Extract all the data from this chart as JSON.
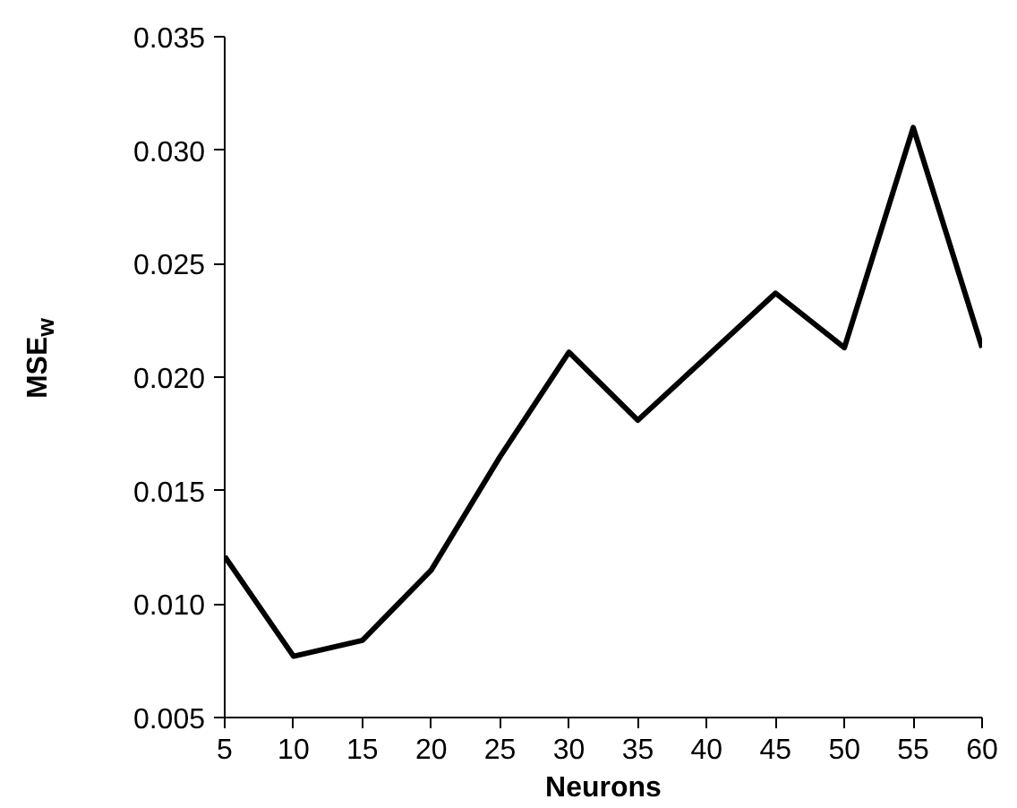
{
  "chart_data": {
    "type": "line",
    "xlabel": "Neurons",
    "ylabel": "MSE$_{w}$",
    "x": [
      5,
      10,
      15,
      20,
      25,
      30,
      35,
      40,
      45,
      50,
      55,
      60
    ],
    "series": [
      {
        "color": "#000000",
        "values": [
          0.0121,
          0.0077,
          0.0084,
          0.0115,
          0.0165,
          0.0211,
          0.0181,
          0.0209,
          0.0237,
          0.0213,
          0.031,
          0.0213
        ]
      }
    ],
    "xlim": [
      5,
      60
    ],
    "xticks": [
      5,
      10,
      15,
      20,
      25,
      30,
      35,
      40,
      45,
      50,
      55,
      60
    ],
    "ylim": [
      0.005,
      0.035
    ],
    "yticks": [
      {
        "value": 0.005,
        "label": "0.005"
      },
      {
        "value": 0.01,
        "label": "0.010"
      },
      {
        "value": 0.015,
        "label": "0.015"
      },
      {
        "value": 0.02,
        "label": "0.020"
      },
      {
        "value": 0.025,
        "label": "0.025"
      },
      {
        "value": 0.03,
        "label": "0.030"
      },
      {
        "value": 0.035,
        "label": "0.035"
      }
    ],
    "grid": false,
    "marker": "none",
    "line_style": "solid"
  }
}
